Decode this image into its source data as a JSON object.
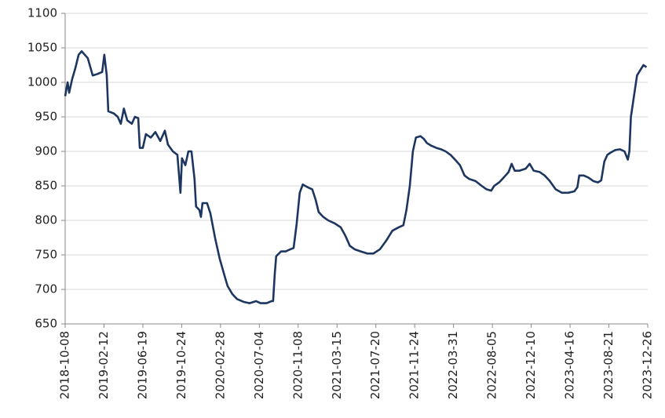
{
  "chart_data": {
    "type": "line",
    "color": "#1c3660",
    "grid": true,
    "xlim": [
      "2018-10-08",
      "2023-12-26"
    ],
    "xticks": [
      "2018-10-08",
      "2019-02-12",
      "2019-06-19",
      "2019-10-24",
      "2020-02-28",
      "2020-07-04",
      "2020-11-08",
      "2021-03-15",
      "2021-07-20",
      "2021-11-24",
      "2022-03-31",
      "2022-08-05",
      "2022-12-10",
      "2023-04-16",
      "2023-08-21",
      "2023-12-26"
    ],
    "ylim": [
      650,
      1100
    ],
    "yticks": [
      650,
      700,
      750,
      800,
      850,
      900,
      950,
      1000,
      1050,
      1100
    ],
    "x": [
      "2018-10-08",
      "2018-10-16",
      "2018-10-21",
      "2018-10-31",
      "2018-11-10",
      "2018-11-21",
      "2018-12-01",
      "2018-12-11",
      "2018-12-21",
      "2019-01-06",
      "2019-01-21",
      "2019-02-06",
      "2019-02-13",
      "2019-02-21",
      "2019-02-26",
      "2019-03-16",
      "2019-03-29",
      "2019-04-08",
      "2019-04-18",
      "2019-04-29",
      "2019-05-14",
      "2019-05-24",
      "2019-06-04",
      "2019-06-09",
      "2019-06-19",
      "2019-06-29",
      "2019-07-15",
      "2019-07-30",
      "2019-08-15",
      "2019-08-30",
      "2019-09-09",
      "2019-09-25",
      "2019-10-10",
      "2019-10-20",
      "2019-10-25",
      "2019-11-05",
      "2019-11-15",
      "2019-11-25",
      "2019-12-05",
      "2019-12-10",
      "2019-12-21",
      "2019-12-26",
      "2019-12-31",
      "2020-01-15",
      "2020-01-26",
      "2020-02-10",
      "2020-02-25",
      "2020-03-12",
      "2020-03-22",
      "2020-04-07",
      "2020-04-22",
      "2020-05-13",
      "2020-06-02",
      "2020-06-23",
      "2020-07-08",
      "2020-07-28",
      "2020-08-13",
      "2020-08-18",
      "2020-08-23",
      "2020-08-28",
      "2020-09-13",
      "2020-09-28",
      "2020-10-13",
      "2020-10-24",
      "2020-11-03",
      "2020-11-13",
      "2020-11-23",
      "2020-12-09",
      "2020-12-24",
      "2021-01-04",
      "2021-01-14",
      "2021-01-29",
      "2021-02-14",
      "2021-03-06",
      "2021-03-27",
      "2021-04-11",
      "2021-04-26",
      "2021-05-12",
      "2021-06-01",
      "2021-06-22",
      "2021-07-12",
      "2021-08-02",
      "2021-08-22",
      "2021-09-12",
      "2021-10-03",
      "2021-10-18",
      "2021-10-28",
      "2021-11-08",
      "2021-11-18",
      "2021-11-28",
      "2021-12-13",
      "2021-12-24",
      "2022-01-03",
      "2022-01-18",
      "2022-02-03",
      "2022-02-18",
      "2022-03-05",
      "2022-03-21",
      "2022-04-05",
      "2022-04-21",
      "2022-05-06",
      "2022-05-21",
      "2022-06-11",
      "2022-07-01",
      "2022-07-17",
      "2022-08-01",
      "2022-08-11",
      "2022-08-27",
      "2022-09-11",
      "2022-09-27",
      "2022-10-07",
      "2022-10-17",
      "2022-11-02",
      "2022-11-22",
      "2022-12-05",
      "2022-12-18",
      "2023-01-07",
      "2023-01-23",
      "2023-02-07",
      "2023-02-28",
      "2023-03-20",
      "2023-04-10",
      "2023-04-30",
      "2023-05-10",
      "2023-05-16",
      "2023-05-31",
      "2023-06-15",
      "2023-07-01",
      "2023-07-16",
      "2023-07-27",
      "2023-08-06",
      "2023-08-16",
      "2023-08-26",
      "2023-09-11",
      "2023-09-26",
      "2023-10-11",
      "2023-10-22",
      "2023-10-27",
      "2023-11-01",
      "2023-11-11",
      "2023-11-21",
      "2023-12-02",
      "2023-12-12",
      "2023-12-22"
    ],
    "values": [
      980,
      1000,
      985,
      1005,
      1020,
      1040,
      1045,
      1040,
      1035,
      1010,
      1012,
      1015,
      1040,
      1010,
      958,
      955,
      950,
      940,
      962,
      945,
      940,
      950,
      948,
      905,
      905,
      925,
      920,
      928,
      915,
      930,
      910,
      900,
      895,
      840,
      890,
      880,
      900,
      900,
      860,
      820,
      815,
      805,
      825,
      825,
      810,
      775,
      745,
      720,
      705,
      693,
      686,
      682,
      680,
      683,
      680,
      680,
      683,
      683,
      720,
      748,
      755,
      755,
      758,
      760,
      795,
      840,
      852,
      848,
      845,
      830,
      812,
      805,
      800,
      796,
      790,
      778,
      763,
      758,
      755,
      752,
      752,
      758,
      770,
      785,
      790,
      793,
      815,
      850,
      900,
      920,
      922,
      918,
      912,
      908,
      905,
      903,
      900,
      895,
      888,
      880,
      865,
      860,
      857,
      850,
      845,
      843,
      850,
      855,
      862,
      870,
      882,
      872,
      872,
      875,
      882,
      872,
      870,
      865,
      858,
      845,
      840,
      840,
      842,
      848,
      865,
      865,
      862,
      857,
      855,
      858,
      885,
      895,
      898,
      902,
      903,
      900,
      888,
      900,
      950,
      980,
      1010,
      1018,
      1025,
      1022
    ]
  }
}
